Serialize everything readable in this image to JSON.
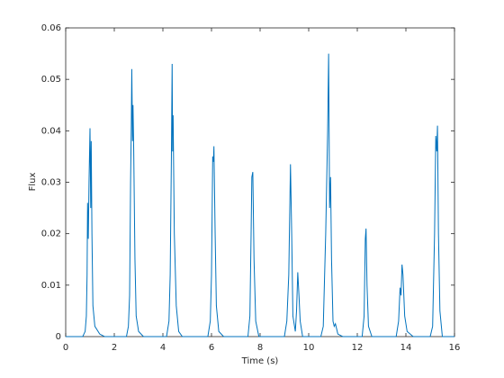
{
  "chart_data": {
    "type": "line",
    "xlabel": "Time (s)",
    "ylabel": "Flux",
    "xlim": [
      0,
      16
    ],
    "ylim": [
      0,
      0.06
    ],
    "xticks": [
      0,
      2,
      4,
      6,
      8,
      10,
      12,
      14,
      16
    ],
    "yticks": [
      0,
      0.01,
      0.02,
      0.03,
      0.04,
      0.05,
      0.06
    ],
    "series": [
      {
        "color": "#0072bd",
        "x": [
          0,
          0.7,
          0.8,
          0.85,
          0.88,
          0.9,
          0.93,
          0.96,
          1.0,
          1.03,
          1.05,
          1.08,
          1.12,
          1.2,
          1.4,
          1.6,
          2.5,
          2.58,
          2.63,
          2.67,
          2.7,
          2.72,
          2.75,
          2.77,
          2.8,
          2.85,
          2.9,
          3.0,
          3.2,
          4.15,
          4.25,
          4.3,
          4.35,
          4.38,
          4.4,
          4.42,
          4.47,
          4.55,
          4.65,
          4.8,
          5.85,
          5.95,
          6.0,
          6.05,
          6.08,
          6.1,
          6.15,
          6.2,
          6.3,
          6.5,
          7.5,
          7.58,
          7.63,
          7.66,
          7.7,
          7.75,
          7.82,
          7.95,
          9.0,
          9.1,
          9.18,
          9.25,
          9.3,
          9.35,
          9.45,
          9.5,
          9.55,
          9.6,
          9.65,
          9.75,
          10.5,
          10.6,
          10.7,
          10.78,
          10.82,
          10.86,
          10.9,
          10.94,
          11.0,
          11.05,
          11.1,
          11.2,
          11.4,
          12.2,
          12.28,
          12.33,
          12.36,
          12.4,
          12.46,
          12.6,
          13.6,
          13.7,
          13.76,
          13.8,
          13.84,
          13.88,
          13.95,
          14.05,
          14.3,
          15.0,
          15.1,
          15.18,
          15.23,
          15.27,
          15.3,
          15.34,
          15.4,
          15.5,
          16
        ],
        "values": [
          0,
          0,
          0.001,
          0.004,
          0.012,
          0.026,
          0.019,
          0.03,
          0.0405,
          0.025,
          0.038,
          0.02,
          0.006,
          0.002,
          0.0005,
          0,
          0,
          0.002,
          0.008,
          0.03,
          0.041,
          0.052,
          0.038,
          0.045,
          0.036,
          0.015,
          0.004,
          0.001,
          0,
          0,
          0.003,
          0.012,
          0.035,
          0.053,
          0.036,
          0.043,
          0.02,
          0.006,
          0.001,
          0,
          0,
          0.003,
          0.012,
          0.035,
          0.034,
          0.037,
          0.02,
          0.006,
          0.001,
          0,
          0,
          0.004,
          0.02,
          0.031,
          0.032,
          0.015,
          0.003,
          0,
          0,
          0.003,
          0.012,
          0.0335,
          0.02,
          0.004,
          0.001,
          0.005,
          0.0125,
          0.008,
          0.003,
          0,
          0,
          0.002,
          0.02,
          0.04,
          0.055,
          0.025,
          0.031,
          0.015,
          0.003,
          0.002,
          0.0025,
          0.0005,
          0,
          0,
          0.004,
          0.019,
          0.021,
          0.01,
          0.002,
          0,
          0,
          0.003,
          0.0095,
          0.008,
          0.014,
          0.012,
          0.004,
          0.001,
          0,
          0,
          0.002,
          0.02,
          0.039,
          0.036,
          0.041,
          0.02,
          0.005,
          0,
          0
        ]
      }
    ]
  }
}
